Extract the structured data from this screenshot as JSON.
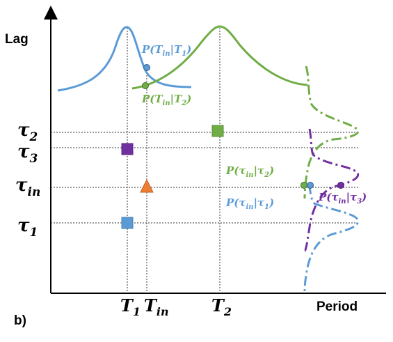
{
  "panel_label": "b)",
  "axes": {
    "y_label": "Lag",
    "x_label": "Period"
  },
  "x_ticks": [
    {
      "key": "T1",
      "base": "T",
      "sub": "1"
    },
    {
      "key": "Tin",
      "base": "T",
      "sub": "in"
    },
    {
      "key": "T2",
      "base": "T",
      "sub": "2"
    }
  ],
  "y_ticks": [
    {
      "key": "tau2",
      "base": "τ",
      "sub": "2"
    },
    {
      "key": "tau3",
      "base": "τ",
      "sub": "3"
    },
    {
      "key": "tauin",
      "base": "τ",
      "sub": "in"
    },
    {
      "key": "tau1",
      "base": "τ",
      "sub": "1"
    }
  ],
  "annotations": {
    "p_Tin_T1": {
      "pre": "P(T",
      "sub1": "in",
      "mid": "|T",
      "sub2": "1",
      "post": ")"
    },
    "p_Tin_T2": {
      "pre": "P(T",
      "sub1": "in",
      "mid": "|T",
      "sub2": "2",
      "post": ")"
    },
    "p_tau_2": {
      "pre": "P(τ",
      "sub1": "in",
      "mid": "|τ",
      "sub2": "2",
      "post": ")"
    },
    "p_tau_1": {
      "pre": "P(τ",
      "sub1": "in",
      "mid": "|τ",
      "sub2": "1",
      "post": ")"
    },
    "p_tau_3": {
      "pre": "P(τ",
      "sub1": "in",
      "mid": "|τ",
      "sub2": "3",
      "post": ")"
    }
  },
  "colors": {
    "blue": "#5b9bd5",
    "green": "#70ad47",
    "purple": "#7030a0",
    "orange": "#ed7d31",
    "axis": "#000000"
  }
}
